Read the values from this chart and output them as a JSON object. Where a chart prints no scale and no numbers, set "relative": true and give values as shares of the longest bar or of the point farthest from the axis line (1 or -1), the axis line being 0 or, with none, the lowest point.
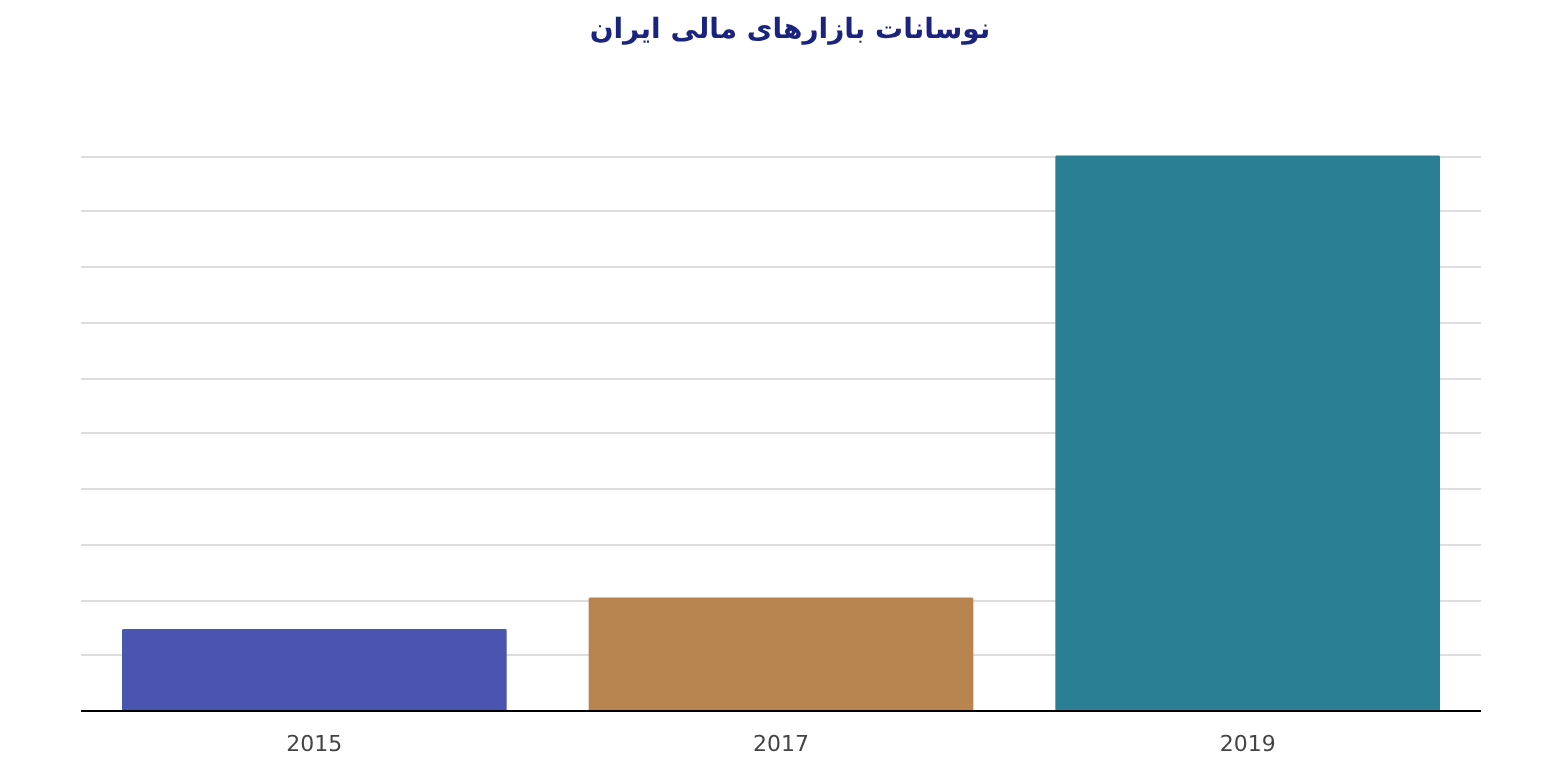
{
  "chart_data": {
    "type": "bar",
    "title": "نوسانات بازارهای مالی ایران",
    "categories": [
      "2015",
      "2017",
      "2019"
    ],
    "values": [
      0.146,
      0.203,
      1
    ],
    "colors": [
      "#4a55b0",
      "#b88450",
      "#2a7f95"
    ],
    "relative": true,
    "grid": true
  }
}
